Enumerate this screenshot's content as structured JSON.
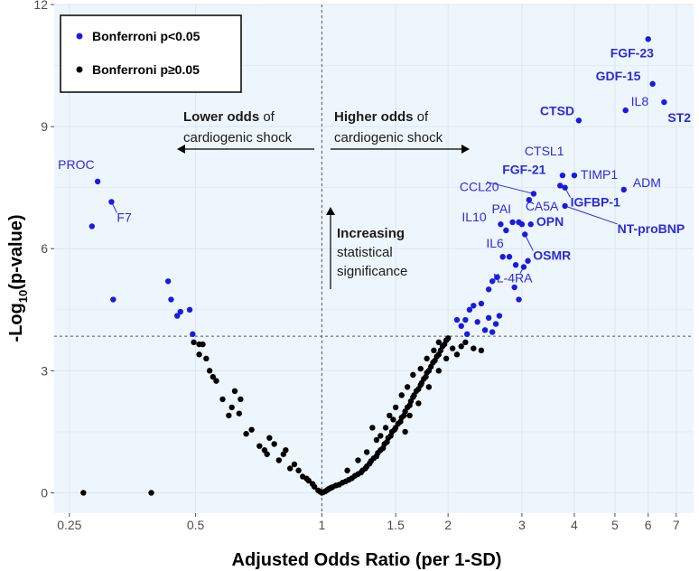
{
  "chart_data": {
    "type": "scatter",
    "title": "",
    "xlabel": "Adjusted Odds Ratio (per 1-SD)",
    "ylabel_main": "-Log",
    "ylabel_sub": "10",
    "ylabel_tail": "(p-value)",
    "xscale": "log",
    "xlim": [
      0.23,
      7.7
    ],
    "ylim": [
      -0.5,
      12
    ],
    "xticks": [
      {
        "value": 0.25,
        "label": "0.25"
      },
      {
        "value": 0.5,
        "label": "0.5"
      },
      {
        "value": 1,
        "label": "1"
      },
      {
        "value": 1.5,
        "label": "1.5"
      },
      {
        "value": 2,
        "label": "2"
      },
      {
        "value": 3,
        "label": "3"
      },
      {
        "value": 4,
        "label": "4"
      },
      {
        "value": 5,
        "label": "5"
      },
      {
        "value": 6,
        "label": "6"
      },
      {
        "value": 7,
        "label": "7"
      }
    ],
    "yticks": [
      {
        "value": 0,
        "label": "0"
      },
      {
        "value": 3,
        "label": "3"
      },
      {
        "value": 6,
        "label": "6"
      },
      {
        "value": 9,
        "label": "9"
      },
      {
        "value": 12,
        "label": "12"
      }
    ],
    "threshold_y": 3.85,
    "threshold_x": 1,
    "colors": {
      "significant": "#1a1ae0",
      "nonsignificant": "#000000",
      "label": "#2b2bd9",
      "panel": "#eef6fd",
      "grid": "#dce6ee"
    },
    "legend": {
      "position": "top-left",
      "entries": [
        {
          "label": "Bonferroni p<0.05",
          "color": "#1a1ae0"
        },
        {
          "label": "Bonferroni p≥0.05",
          "color": "#000000"
        }
      ]
    },
    "annotations": {
      "lower_bold": "Lower odds",
      "lower_rest": " of",
      "lower_line2": "cardiogenic shock",
      "higher_bold": "Higher odds",
      "higher_rest": " of",
      "higher_line2": "cardiogenic shock",
      "up_bold": "Increasing",
      "up_line2": "statistical",
      "up_line3": "significance"
    },
    "labeled_points": [
      {
        "name": "FGF-23",
        "x": 6.0,
        "y": 11.15,
        "bold": true
      },
      {
        "name": "GDF-15",
        "x": 6.15,
        "y": 10.05,
        "bold": true
      },
      {
        "name": "IL8",
        "x": 5.3,
        "y": 9.4,
        "bold": false
      },
      {
        "name": "ST2",
        "x": 6.55,
        "y": 9.6,
        "bold": true
      },
      {
        "name": "CTSD",
        "x": 4.1,
        "y": 9.15,
        "bold": true
      },
      {
        "name": "CTSL1",
        "x": 3.75,
        "y": 7.8,
        "bold": false
      },
      {
        "name": "TIMP1",
        "x": 4.0,
        "y": 7.8,
        "bold": false
      },
      {
        "name": "ADM",
        "x": 5.25,
        "y": 7.45,
        "bold": false
      },
      {
        "name": "FGF-21",
        "x": 3.7,
        "y": 7.55,
        "bold": true
      },
      {
        "name": "IGFBP-1",
        "x": 3.8,
        "y": 7.5,
        "bold": true
      },
      {
        "name": "CCL20",
        "x": 3.2,
        "y": 7.35,
        "bold": false
      },
      {
        "name": "CA5A",
        "x": 3.12,
        "y": 7.2,
        "bold": false
      },
      {
        "name": "NT-proBNP",
        "x": 3.8,
        "y": 7.05,
        "bold": true
      },
      {
        "name": "PAI",
        "x": 2.95,
        "y": 6.65,
        "bold": false
      },
      {
        "name": "IL10",
        "x": 2.67,
        "y": 6.6,
        "bold": false
      },
      {
        "name": "IL6",
        "x": 2.75,
        "y": 6.45,
        "bold": false
      },
      {
        "name": "OPN",
        "x": 3.0,
        "y": 6.6,
        "bold": true
      },
      {
        "name": "OSMR",
        "x": 3.05,
        "y": 6.35,
        "bold": true
      },
      {
        "name": "IL-4RA",
        "x": 3.03,
        "y": 5.55,
        "bold": false
      },
      {
        "name": "PROC",
        "x": 0.292,
        "y": 7.65,
        "bold": false
      },
      {
        "name": "F7",
        "x": 0.315,
        "y": 7.15,
        "bold": false
      }
    ],
    "unlabeled_significant": [
      [
        0.283,
        6.55
      ],
      [
        0.318,
        4.75
      ],
      [
        0.43,
        5.2
      ],
      [
        0.437,
        4.75
      ],
      [
        0.452,
        4.35
      ],
      [
        0.46,
        4.45
      ],
      [
        0.484,
        4.5
      ],
      [
        0.492,
        3.9
      ],
      [
        2.1,
        4.25
      ],
      [
        2.15,
        4.1
      ],
      [
        2.2,
        4.25
      ],
      [
        2.22,
        3.9
      ],
      [
        2.25,
        4.5
      ],
      [
        2.3,
        4.6
      ],
      [
        2.35,
        4.2
      ],
      [
        2.4,
        4.65
      ],
      [
        2.45,
        4.0
      ],
      [
        2.5,
        4.3
      ],
      [
        2.55,
        3.95
      ],
      [
        2.6,
        4.15
      ],
      [
        2.65,
        4.35
      ],
      [
        2.7,
        5.8
      ],
      [
        2.5,
        5.0
      ],
      [
        2.55,
        5.2
      ],
      [
        2.62,
        5.3
      ],
      [
        2.8,
        5.8
      ],
      [
        2.9,
        5.6
      ],
      [
        2.88,
        5.05
      ],
      [
        2.95,
        4.75
      ],
      [
        3.1,
        5.7
      ],
      [
        3.15,
        6.6
      ],
      [
        2.85,
        6.65
      ]
    ],
    "nonsignificant": [
      [
        0.27,
        0.0
      ],
      [
        0.392,
        0.0
      ],
      [
        0.495,
        3.7
      ],
      [
        0.51,
        3.65
      ],
      [
        0.51,
        3.4
      ],
      [
        0.52,
        3.65
      ],
      [
        0.53,
        3.3
      ],
      [
        0.54,
        3.0
      ],
      [
        0.55,
        2.85
      ],
      [
        0.56,
        2.75
      ],
      [
        0.58,
        2.3
      ],
      [
        0.6,
        1.9
      ],
      [
        0.61,
        2.1
      ],
      [
        0.62,
        2.5
      ],
      [
        0.635,
        1.95
      ],
      [
        0.64,
        2.3
      ],
      [
        0.66,
        1.45
      ],
      [
        0.68,
        1.55
      ],
      [
        0.71,
        1.15
      ],
      [
        0.73,
        1.05
      ],
      [
        0.74,
        0.95
      ],
      [
        0.75,
        1.35
      ],
      [
        0.77,
        1.2
      ],
      [
        0.79,
        0.8
      ],
      [
        0.81,
        0.95
      ],
      [
        0.82,
        1.05
      ],
      [
        0.84,
        0.6
      ],
      [
        0.86,
        0.7
      ],
      [
        0.88,
        0.55
      ],
      [
        0.9,
        0.4
      ],
      [
        0.92,
        0.35
      ],
      [
        0.93,
        0.3
      ],
      [
        0.95,
        0.22
      ],
      [
        0.96,
        0.15
      ],
      [
        0.98,
        0.06
      ],
      [
        0.99,
        0.03
      ],
      [
        1.0,
        0.0
      ],
      [
        1.01,
        0.02
      ],
      [
        1.02,
        0.04
      ],
      [
        1.03,
        0.07
      ],
      [
        1.04,
        0.1
      ],
      [
        1.05,
        0.12
      ],
      [
        1.06,
        0.14
      ],
      [
        1.08,
        0.18
      ],
      [
        1.1,
        0.2
      ],
      [
        1.12,
        0.25
      ],
      [
        1.14,
        0.28
      ],
      [
        1.16,
        0.32
      ],
      [
        1.18,
        0.36
      ],
      [
        1.2,
        0.42
      ],
      [
        1.22,
        0.46
      ],
      [
        1.24,
        0.5
      ],
      [
        1.25,
        0.55
      ],
      [
        1.27,
        0.6
      ],
      [
        1.28,
        0.65
      ],
      [
        1.3,
        0.72
      ],
      [
        1.31,
        0.78
      ],
      [
        1.33,
        0.85
      ],
      [
        1.35,
        0.9
      ],
      [
        1.36,
        0.98
      ],
      [
        1.38,
        1.05
      ],
      [
        1.4,
        1.1
      ],
      [
        1.41,
        1.2
      ],
      [
        1.43,
        1.25
      ],
      [
        1.44,
        1.35
      ],
      [
        1.46,
        1.4
      ],
      [
        1.47,
        1.5
      ],
      [
        1.49,
        1.55
      ],
      [
        1.5,
        1.6
      ],
      [
        1.52,
        1.7
      ],
      [
        1.54,
        1.75
      ],
      [
        1.55,
        1.85
      ],
      [
        1.57,
        1.9
      ],
      [
        1.58,
        2.0
      ],
      [
        1.6,
        2.1
      ],
      [
        1.62,
        2.15
      ],
      [
        1.63,
        2.25
      ],
      [
        1.65,
        2.35
      ],
      [
        1.66,
        2.4
      ],
      [
        1.68,
        2.5
      ],
      [
        1.7,
        2.55
      ],
      [
        1.72,
        2.65
      ],
      [
        1.73,
        2.7
      ],
      [
        1.75,
        2.8
      ],
      [
        1.77,
        2.85
      ],
      [
        1.78,
        2.95
      ],
      [
        1.8,
        3.0
      ],
      [
        1.82,
        3.1
      ],
      [
        1.84,
        3.2
      ],
      [
        1.86,
        3.25
      ],
      [
        1.88,
        3.35
      ],
      [
        1.9,
        3.4
      ],
      [
        1.92,
        3.5
      ],
      [
        1.94,
        3.6
      ],
      [
        1.96,
        3.65
      ],
      [
        1.98,
        3.75
      ],
      [
        2.0,
        3.8
      ],
      [
        1.32,
        1.6
      ],
      [
        1.38,
        1.4
      ],
      [
        1.45,
        1.9
      ],
      [
        1.5,
        2.1
      ],
      [
        1.55,
        2.4
      ],
      [
        1.6,
        2.6
      ],
      [
        1.65,
        2.9
      ],
      [
        1.72,
        3.05
      ],
      [
        1.78,
        3.3
      ],
      [
        1.85,
        3.5
      ],
      [
        1.9,
        3.7
      ],
      [
        1.7,
        2.2
      ],
      [
        1.8,
        2.6
      ],
      [
        1.9,
        3.0
      ],
      [
        1.98,
        3.3
      ],
      [
        2.05,
        3.55
      ],
      [
        2.1,
        3.4
      ],
      [
        2.15,
        3.6
      ],
      [
        2.2,
        3.7
      ],
      [
        2.3,
        3.55
      ],
      [
        2.4,
        3.5
      ],
      [
        1.28,
        1.0
      ],
      [
        1.22,
        0.8
      ],
      [
        1.15,
        0.55
      ],
      [
        1.35,
        1.3
      ],
      [
        1.42,
        1.6
      ],
      [
        1.48,
        1.8
      ],
      [
        1.58,
        1.5
      ],
      [
        1.62,
        1.9
      ]
    ]
  }
}
